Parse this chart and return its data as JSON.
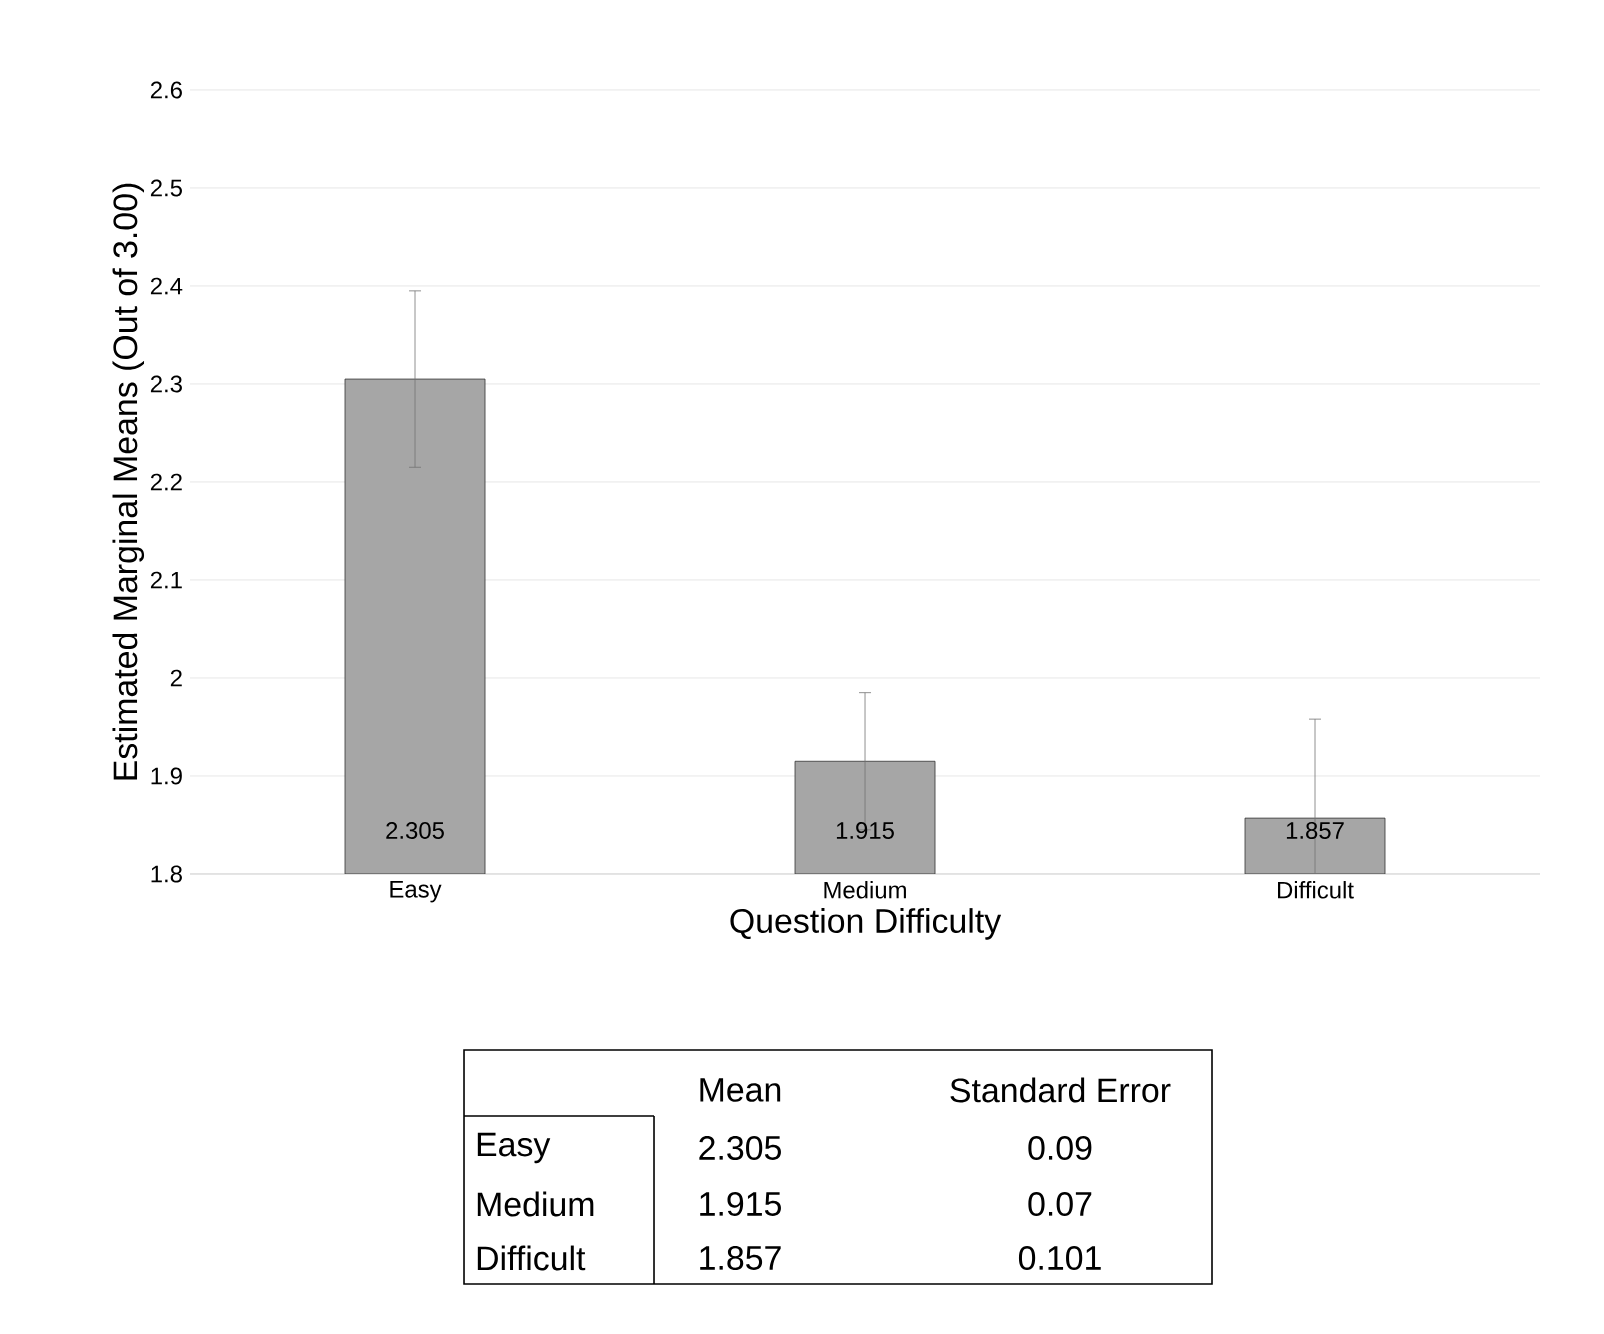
{
  "chart_data": {
    "type": "bar",
    "xlabel": "Question Difficulty",
    "ylabel": "Estimated Marginal Means (Out of 3.00)",
    "categories": [
      "Easy",
      "Medium",
      "Difficult"
    ],
    "values": [
      2.305,
      1.915,
      1.857
    ],
    "errors": [
      0.09,
      0.07,
      0.101
    ],
    "color": "#a6a6a6",
    "ylim": [
      1.8,
      2.6
    ],
    "yticks": [
      1.8,
      1.9,
      2,
      2.1,
      2.2,
      2.3,
      2.4,
      2.5,
      2.6
    ],
    "grid": "y",
    "value_labels": [
      "2.305",
      "1.915",
      "1.857"
    ],
    "annotations": [
      "Mean",
      "Standard Error",
      "2.305",
      "0.09",
      "1.915",
      "0.07",
      "1.857",
      "0.101"
    ]
  }
}
